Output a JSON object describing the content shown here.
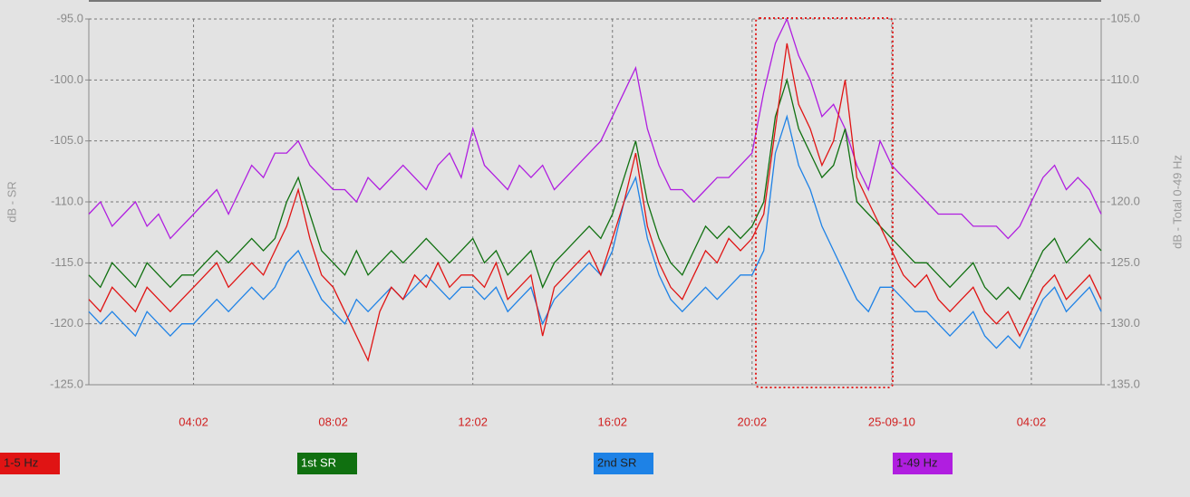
{
  "chart_data": {
    "type": "line",
    "y_label": "dB - SR",
    "y2_label": "dB - Total 0-49 Hz",
    "categories": [
      null,
      null,
      null,
      null,
      null,
      null,
      null,
      null,
      null,
      "04:02",
      null,
      null,
      null,
      null,
      null,
      null,
      null,
      null,
      null,
      null,
      null,
      "08:02",
      null,
      null,
      null,
      null,
      null,
      null,
      null,
      null,
      null,
      null,
      null,
      "12:02",
      null,
      null,
      null,
      null,
      null,
      null,
      null,
      null,
      null,
      null,
      null,
      "16:02",
      null,
      null,
      null,
      null,
      null,
      null,
      null,
      null,
      null,
      null,
      null,
      "20:02",
      null,
      null,
      null,
      null,
      null,
      null,
      null,
      null,
      null,
      null,
      null,
      "25-09-10",
      null,
      null,
      null,
      null,
      null,
      null,
      null,
      null,
      null,
      null,
      null,
      "04:02",
      null,
      null,
      null,
      null,
      null,
      null
    ],
    "ylim": [
      -125,
      -95
    ],
    "yticks": [
      {
        "value": -125,
        "label": "-125.0"
      },
      {
        "value": -120,
        "label": "-120.0"
      },
      {
        "value": -115,
        "label": "-115.0"
      },
      {
        "value": -110,
        "label": "-110.0"
      },
      {
        "value": -105,
        "label": "-105.0"
      },
      {
        "value": -100,
        "label": "-100.0"
      },
      {
        "value": -95,
        "label": "-95.0"
      }
    ],
    "y2lim": [
      -135,
      -105
    ],
    "y2ticks": [
      {
        "value": -135,
        "label": "-135.0"
      },
      {
        "value": -130,
        "label": "-130.0"
      },
      {
        "value": -125,
        "label": "-125.0"
      },
      {
        "value": -120,
        "label": "-120.0"
      },
      {
        "value": -115,
        "label": "-115.0"
      },
      {
        "value": -110,
        "label": "-110.0"
      },
      {
        "value": -105,
        "label": "-105.0"
      }
    ],
    "grid": true,
    "series": [
      {
        "name": "1-49 Hz",
        "color": "#b01ee0",
        "axis": "y2",
        "values": [
          -121,
          -120,
          -122,
          -121,
          -120,
          -122,
          -121,
          -123,
          -122,
          -121,
          -120,
          -119,
          -121,
          -119,
          -117,
          -118,
          -116,
          -116,
          -115,
          -117,
          -118,
          -119,
          -119,
          -120,
          -118,
          -119,
          -118,
          -117,
          -118,
          -119,
          -117,
          -116,
          -118,
          -114,
          -117,
          -118,
          -119,
          -117,
          -118,
          -117,
          -119,
          -118,
          -117,
          -116,
          -115,
          -113,
          -111,
          -109,
          -114,
          -117,
          -119,
          -119,
          -120,
          -119,
          -118,
          -118,
          -117,
          -116,
          -111,
          -107,
          -105,
          -108,
          -110,
          -113,
          -112,
          -114,
          -117,
          -119,
          -115,
          -117,
          -118,
          -119,
          -120,
          -121,
          -121,
          -121,
          -122,
          -122,
          -122,
          -123,
          -122,
          -120,
          -118,
          -117,
          -119,
          -118,
          -119,
          -121
        ]
      },
      {
        "name": "1st SR",
        "color": "#107010",
        "values": [
          -116,
          -117,
          -115,
          -116,
          -117,
          -115,
          -116,
          -117,
          -116,
          -116,
          -115,
          -114,
          -115,
          -114,
          -113,
          -114,
          -113,
          -110,
          -108,
          -111,
          -114,
          -115,
          -116,
          -114,
          -116,
          -115,
          -114,
          -115,
          -114,
          -113,
          -114,
          -115,
          -114,
          -113,
          -115,
          -114,
          -116,
          -115,
          -114,
          -117,
          -115,
          -114,
          -113,
          -112,
          -113,
          -111,
          -108,
          -105,
          -110,
          -113,
          -115,
          -116,
          -114,
          -112,
          -113,
          -112,
          -113,
          -112,
          -110,
          -103,
          -100,
          -104,
          -106,
          -108,
          -107,
          -104,
          -110,
          -111,
          -112,
          -113,
          -114,
          -115,
          -115,
          -116,
          -117,
          -116,
          -115,
          -117,
          -118,
          -117,
          -118,
          -116,
          -114,
          -113,
          -115,
          -114,
          -113,
          -114
        ]
      },
      {
        "name": "2nd SR",
        "color": "#1e82e6",
        "values": [
          -119,
          -120,
          -119,
          -120,
          -121,
          -119,
          -120,
          -121,
          -120,
          -120,
          -119,
          -118,
          -119,
          -118,
          -117,
          -118,
          -117,
          -115,
          -114,
          -116,
          -118,
          -119,
          -120,
          -118,
          -119,
          -118,
          -117,
          -118,
          -117,
          -116,
          -117,
          -118,
          -117,
          -117,
          -118,
          -117,
          -119,
          -118,
          -117,
          -120,
          -118,
          -117,
          -116,
          -115,
          -116,
          -114,
          -110,
          -108,
          -113,
          -116,
          -118,
          -119,
          -118,
          -117,
          -118,
          -117,
          -116,
          -116,
          -114,
          -106,
          -103,
          -107,
          -109,
          -112,
          -114,
          -116,
          -118,
          -119,
          -117,
          -117,
          -118,
          -119,
          -119,
          -120,
          -121,
          -120,
          -119,
          -121,
          -122,
          -121,
          -122,
          -120,
          -118,
          -117,
          -119,
          -118,
          -117,
          -119
        ]
      },
      {
        "name": "1-5 Hz",
        "color": "#e01414",
        "values": [
          -118,
          -119,
          -117,
          -118,
          -119,
          -117,
          -118,
          -119,
          -118,
          -117,
          -116,
          -115,
          -117,
          -116,
          -115,
          -116,
          -114,
          -112,
          -109,
          -113,
          -116,
          -117,
          -119,
          -121,
          -123,
          -119,
          -117,
          -118,
          -116,
          -117,
          -115,
          -117,
          -116,
          -116,
          -117,
          -115,
          -118,
          -117,
          -116,
          -121,
          -117,
          -116,
          -115,
          -114,
          -116,
          -113,
          -110,
          -106,
          -112,
          -115,
          -117,
          -118,
          -116,
          -114,
          -115,
          -113,
          -114,
          -113,
          -111,
          -104,
          -97,
          -102,
          -104,
          -107,
          -105,
          -100,
          -108,
          -110,
          -112,
          -114,
          -116,
          -117,
          -116,
          -118,
          -119,
          -118,
          -117,
          -119,
          -120,
          -119,
          -121,
          -119,
          -117,
          -116,
          -118,
          -117,
          -116,
          -118
        ]
      }
    ]
  }
}
